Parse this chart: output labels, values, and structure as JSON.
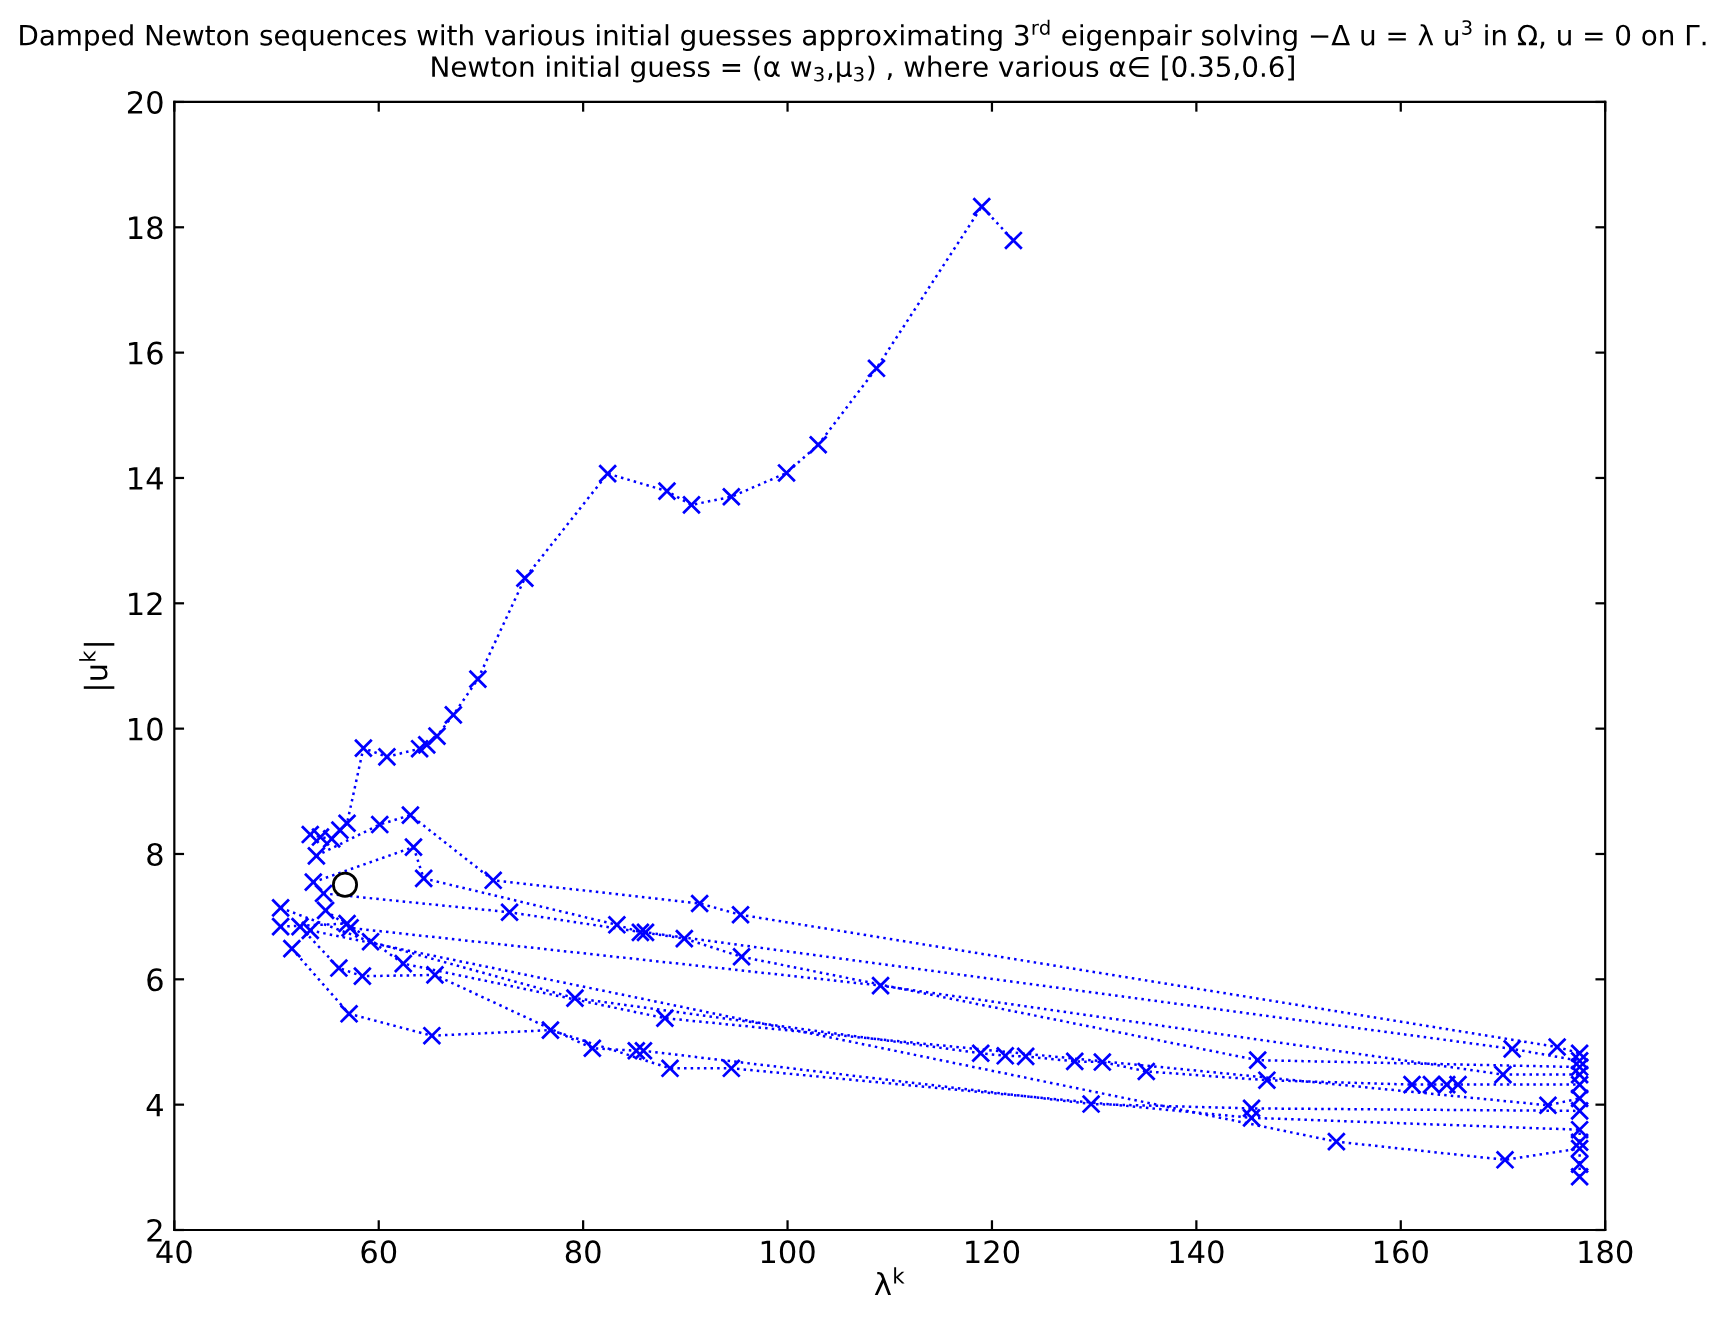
{
  "chart_data": {
    "type": "line",
    "title": "Damped Newton sequences with various initial guesses approximating 3$^{rd}$ eigenpair solving −Δ u = λ u$^{3}$ in Ω, u = 0 on Γ.",
    "subtitle": "Newton initial guess = (α w$_{3}$,μ$_{3}$) , where various α∈ [0.35,0.6]",
    "xlabel": "λ$^{k}$",
    "ylabel": "|u$^{k}$|",
    "xlim": [
      40,
      180
    ],
    "xticks": [
      40,
      60,
      80,
      100,
      120,
      140,
      160,
      180
    ],
    "ylim": [
      2,
      20
    ],
    "yticks": [
      2,
      4,
      6,
      8,
      10,
      12,
      14,
      16,
      18,
      20
    ],
    "grid": false,
    "marker": "cross",
    "line_style": "dotted",
    "series": [
      {
        "color": "#0000ff",
        "x": [
          53.3,
          54.3,
          55.4,
          56.2,
          56.9,
          58.5,
          60.8,
          64.0,
          64.7,
          65.7,
          67.3,
          69.7,
          74.3,
          82.4,
          88.2,
          90.6,
          94.5,
          99.9,
          103.0,
          108.7,
          119.0,
          122.1
        ],
        "values": [
          8.31,
          8.27,
          8.24,
          8.38,
          8.49,
          9.69,
          9.55,
          9.68,
          9.74,
          9.88,
          10.22,
          10.79,
          12.4,
          14.07,
          13.79,
          13.57,
          13.7,
          14.08,
          14.53,
          15.75,
          18.33,
          17.79
        ]
      },
      {
        "color": "#0000ff",
        "x": [
          53.9,
          60.1,
          63.1,
          71.2,
          91.4,
          95.4,
          175.3,
          177.5
        ],
        "values": [
          7.97,
          8.47,
          8.62,
          7.58,
          7.21,
          7.03,
          4.92,
          4.82
        ]
      },
      {
        "color": "#0000ff",
        "x": [
          53.6,
          63.4,
          64.4,
          83.3,
          85.6,
          86.1,
          170.9,
          177.5
        ],
        "values": [
          7.55,
          8.11,
          7.61,
          6.87,
          6.75,
          6.75,
          4.89,
          4.7
        ]
      },
      {
        "color": "#0000ff",
        "x": [
          54.6,
          72.8,
          89.9,
          95.5,
          146.0,
          177.5
        ],
        "values": [
          7.37,
          7.07,
          6.65,
          6.36,
          4.71,
          4.6
        ]
      },
      {
        "color": "#0000ff",
        "x": [
          54.8,
          57.2,
          109.1,
          170.0,
          177.5
        ],
        "values": [
          7.1,
          6.82,
          5.9,
          4.48,
          4.48
        ]
      },
      {
        "color": "#0000ff",
        "x": [
          50.4,
          59.2,
          79.2,
          118.9,
          121.3,
          123.3,
          128.1,
          130.8,
          135.1,
          146.9,
          161.1,
          163.0,
          164.5,
          165.6,
          177.5
        ],
        "values": [
          7.14,
          6.6,
          5.7,
          4.82,
          4.78,
          4.77,
          4.69,
          4.68,
          4.53,
          4.39,
          4.32,
          4.32,
          4.32,
          4.32,
          4.32
        ]
      },
      {
        "color": "#0000ff",
        "x": [
          50.4,
          56.9,
          62.4,
          88.0,
          174.4,
          177.5
        ],
        "values": [
          6.84,
          6.89,
          6.25,
          5.38,
          3.99,
          4.1
        ]
      },
      {
        "color": "#0000ff",
        "x": [
          52.3,
          56.1,
          58.4,
          65.5,
          80.9,
          85.2,
          85.9,
          129.7,
          145.4,
          177.5
        ],
        "values": [
          6.84,
          6.18,
          6.05,
          6.07,
          4.9,
          4.86,
          4.86,
          4.01,
          3.94,
          3.9
        ]
      },
      {
        "color": "#0000ff",
        "x": [
          51.5,
          57.1,
          65.2,
          76.8,
          88.5,
          94.5,
          145.4,
          177.5,
          177.5
        ],
        "values": [
          6.49,
          5.45,
          5.1,
          5.19,
          4.58,
          4.58,
          3.79,
          3.6,
          3.4
        ]
      },
      {
        "color": "#0000ff",
        "x": [
          53.3,
          153.7,
          170.2,
          177.5,
          177.5,
          177.5
        ],
        "values": [
          6.78,
          3.41,
          3.12,
          3.3,
          3.05,
          2.85
        ]
      },
      {
        "type": "scatter",
        "marker": "circle",
        "color": "#000000",
        "x": [
          56.7
        ],
        "values": [
          7.51
        ]
      }
    ]
  }
}
